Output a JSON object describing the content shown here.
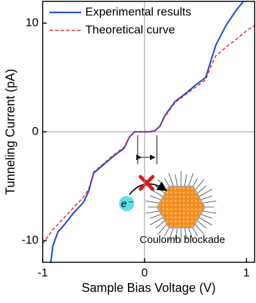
{
  "chart_data": {
    "type": "line",
    "xlabel": "Sample Bias Voltage (V)",
    "ylabel": "Tunneling Current (pA)",
    "xlim": [
      -1,
      1.08
    ],
    "ylim": [
      -12,
      12
    ],
    "xticks": [
      -1,
      0,
      1
    ],
    "yticks": [
      -10,
      0,
      10
    ],
    "annotations": [
      "Coulomb blockade",
      "e⁻"
    ],
    "series": [
      {
        "name": "Experimental results",
        "color": "#1f4fd8",
        "linestyle": "solid",
        "x": [
          -0.92,
          -0.9,
          -0.85,
          -0.8,
          -0.7,
          -0.6,
          -0.55,
          -0.5,
          -0.4,
          -0.3,
          -0.2,
          -0.15,
          -0.1,
          0,
          0.05,
          0.1,
          0.15,
          0.2,
          0.3,
          0.4,
          0.5,
          0.6,
          0.65,
          0.7,
          0.8,
          0.9,
          0.97
        ],
        "values": [
          -12,
          -10.5,
          -9.2,
          -8.7,
          -7.5,
          -6.5,
          -5.5,
          -3.8,
          -3.0,
          -2.2,
          -1.5,
          -0.5,
          0,
          0,
          0,
          0.1,
          0.5,
          1.5,
          2.8,
          3.5,
          4.3,
          5.0,
          6.5,
          8.0,
          9.8,
          11.2,
          12
        ]
      },
      {
        "name": "Theoretical curve",
        "color": "#e8262a",
        "linestyle": "dashed",
        "x": [
          -1,
          -0.9,
          -0.8,
          -0.7,
          -0.6,
          -0.55,
          -0.5,
          -0.4,
          -0.3,
          -0.2,
          -0.15,
          -0.1,
          0,
          0.05,
          0.1,
          0.15,
          0.2,
          0.3,
          0.4,
          0.5,
          0.6,
          0.65,
          0.7,
          0.8,
          0.9,
          1.0,
          1.08
        ],
        "values": [
          -10.3,
          -9.0,
          -8.0,
          -7.0,
          -6.0,
          -5.3,
          -3.7,
          -2.9,
          -2.1,
          -1.4,
          -0.5,
          0,
          0,
          0,
          0.1,
          0.5,
          1.4,
          2.7,
          3.4,
          4.1,
          4.8,
          6.0,
          7.0,
          7.8,
          8.5,
          9.3,
          9.8
        ]
      }
    ]
  }
}
